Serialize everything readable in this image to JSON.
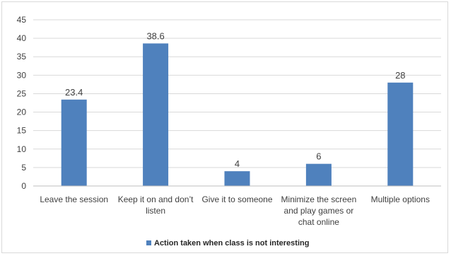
{
  "chart_data": {
    "type": "bar",
    "categories": [
      [
        "Leave the session"
      ],
      [
        "Keep it on and don’t",
        "listen"
      ],
      [
        "Give it to someone"
      ],
      [
        "Minimize the screen",
        "and play games or",
        "chat online"
      ],
      [
        "Multiple options"
      ]
    ],
    "series": [
      {
        "name": "Action taken when class is not interesting",
        "values": [
          23.4,
          38.6,
          4,
          6,
          28
        ],
        "data_labels": [
          "23.4",
          "38.6",
          "4",
          "6",
          "28"
        ],
        "color": "#4f81bd"
      }
    ],
    "y_ticks": [
      "0",
      "5",
      "10",
      "15",
      "20",
      "25",
      "30",
      "35",
      "40",
      "45"
    ],
    "ylim": [
      0,
      45
    ],
    "grid": true,
    "legend_position": "bottom"
  }
}
